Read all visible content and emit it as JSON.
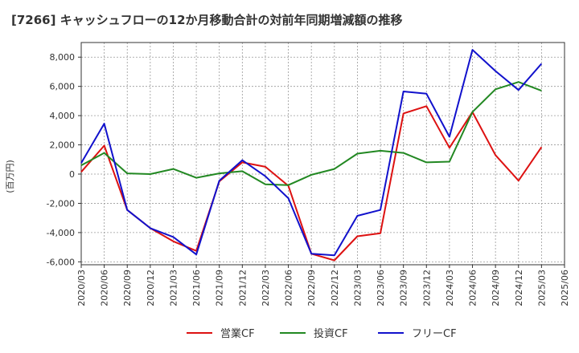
{
  "chart_data": {
    "type": "line",
    "title": "[7266]  キャッシュフローの12か月移動合計の対前年同期増減額の推移",
    "ylabel": "(百万円)",
    "xlabel": "",
    "ylim": [
      -6200,
      9000
    ],
    "yticks": [
      -6000,
      -4000,
      -2000,
      0,
      2000,
      4000,
      6000,
      8000
    ],
    "ytick_labels": [
      "-6,000",
      "-4,000",
      "-2,000",
      "0",
      "2,000",
      "4,000",
      "6,000",
      "8,000"
    ],
    "grid": true,
    "legend_position": "bottom",
    "x_tick_labels": [
      "2020/03",
      "2020/06",
      "2020/09",
      "2020/12",
      "2021/03",
      "2021/06",
      "2021/09",
      "2021/12",
      "2022/03",
      "2022/06",
      "2022/09",
      "2022/12",
      "2023/03",
      "2023/06",
      "2023/09",
      "2023/12",
      "2024/03",
      "2024/06",
      "2024/09",
      "2024/12",
      "2025/03",
      "2025/06"
    ],
    "categories": [
      "2020/03",
      "2020/06",
      "2020/09",
      "2020/12",
      "2021/03",
      "2021/06",
      "2021/09",
      "2021/12",
      "2022/03",
      "2022/06",
      "2022/09",
      "2022/12",
      "2023/03",
      "2023/06",
      "2023/09",
      "2023/12",
      "2024/03",
      "2024/06",
      "2024/09",
      "2024/12",
      "2025/03"
    ],
    "series": [
      {
        "name": "営業CF",
        "color": "#dd1111",
        "values": [
          150,
          1950,
          -2450,
          -3700,
          -4600,
          -5250,
          -500,
          800,
          500,
          -800,
          -5450,
          -5900,
          -4250,
          -4050,
          4150,
          4650,
          1800,
          4250,
          1300,
          -450,
          1850
        ]
      },
      {
        "name": "投資CF",
        "color": "#228822",
        "values": [
          600,
          1450,
          50,
          0,
          350,
          -250,
          50,
          200,
          -700,
          -750,
          -50,
          350,
          1400,
          1600,
          1450,
          800,
          850,
          4250,
          5800,
          6300,
          5700
        ]
      },
      {
        "name": "フリーCF",
        "color": "#1111cc",
        "values": [
          750,
          3450,
          -2450,
          -3700,
          -4300,
          -5500,
          -450,
          950,
          -150,
          -1650,
          -5450,
          -5550,
          -2850,
          -2450,
          5650,
          5500,
          2550,
          8500,
          7050,
          5750,
          7550
        ]
      }
    ]
  }
}
